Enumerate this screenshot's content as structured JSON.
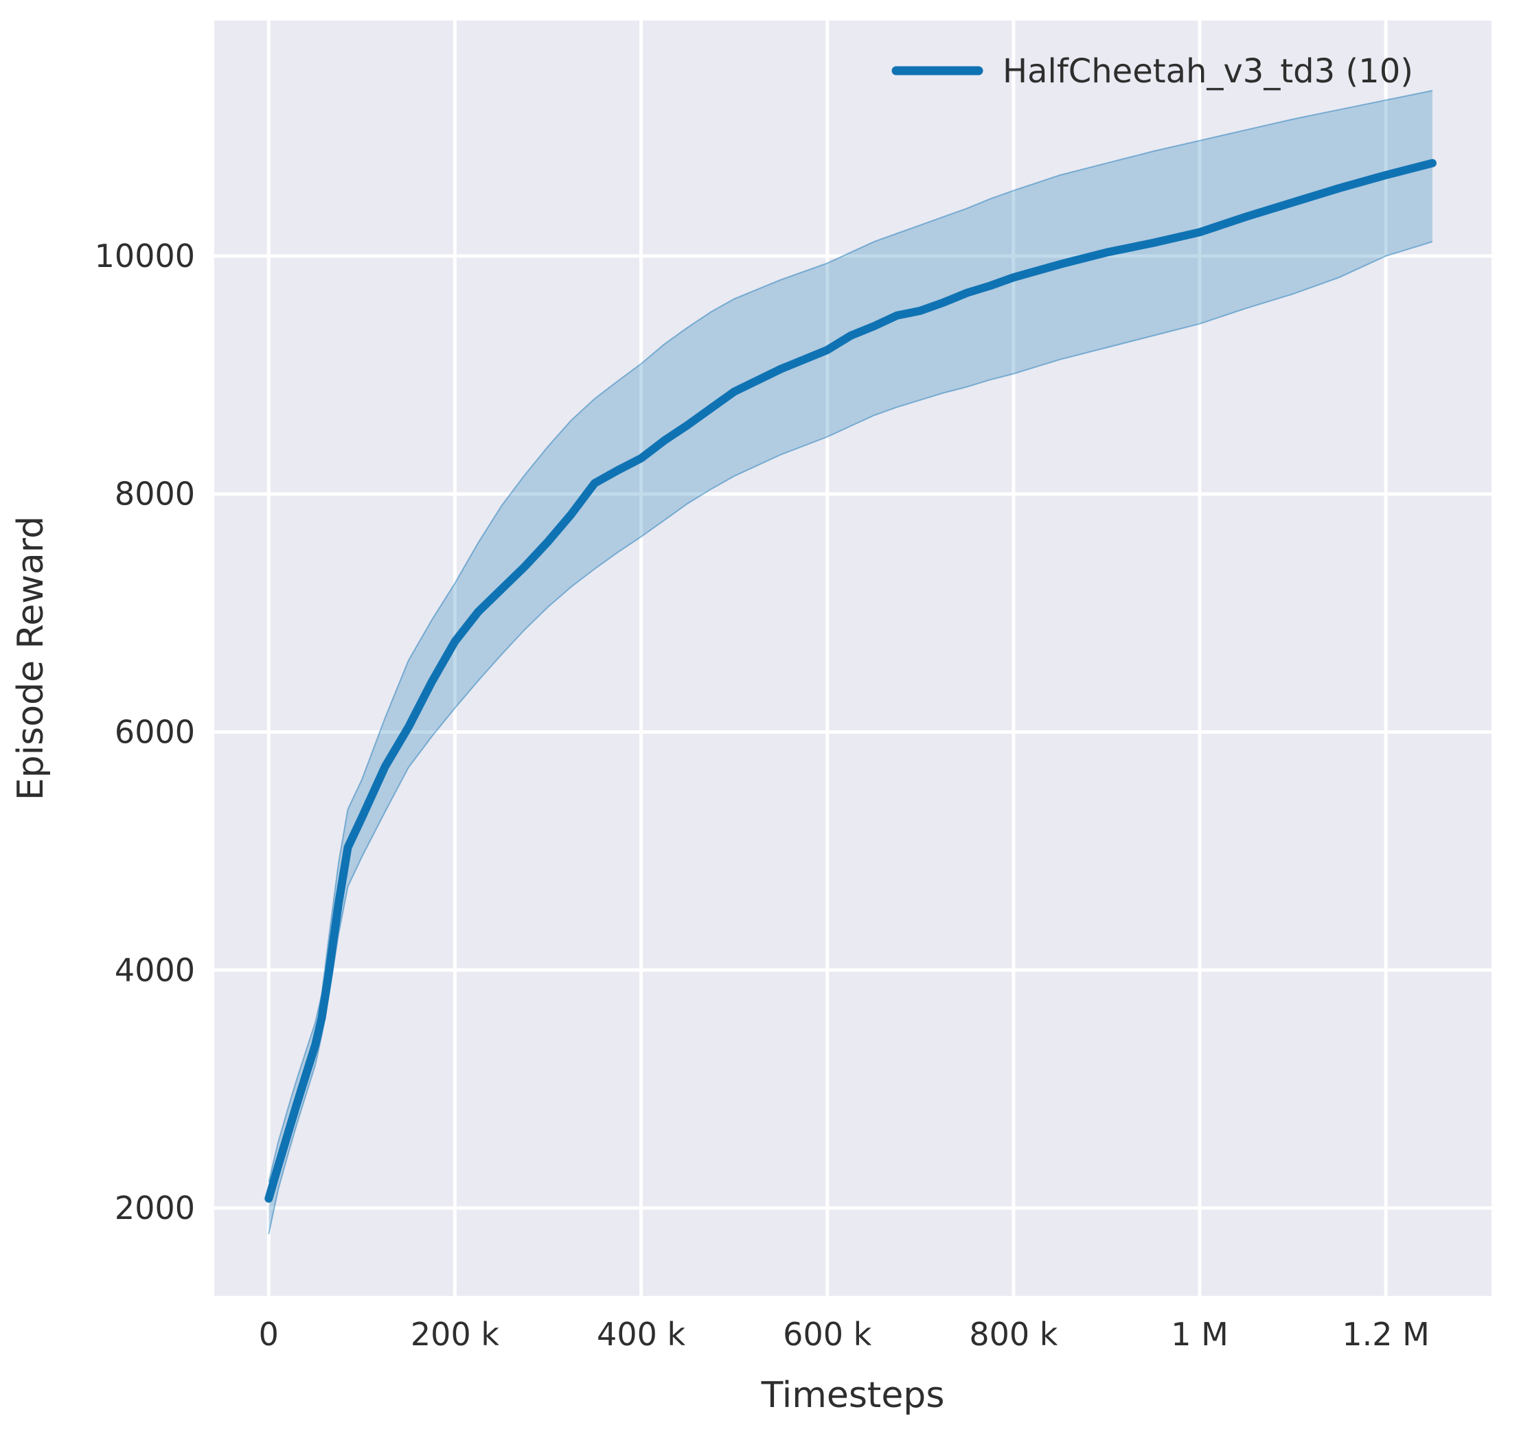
{
  "chart_data": {
    "type": "line",
    "title": "",
    "xlabel": "Timesteps",
    "ylabel": "Episode Reward",
    "legend": {
      "position": "upper right",
      "frame": false,
      "label": "HalfCheetah_v3_td3 (10)"
    },
    "grid": true,
    "style": "seaborn-darkgrid",
    "colors": {
      "line": "#0f73b3",
      "band_fill": "rgba(15,115,179,0.26)",
      "band_edge": "rgba(15,115,179,0.45)",
      "plot_background": "#eaeaf2",
      "gridline": "#ffffff",
      "text": "#2e2e2e",
      "figure_background": "#ffffff"
    },
    "x_ticks": {
      "values": [
        0,
        200000,
        400000,
        600000,
        800000,
        1000000,
        1200000
      ],
      "labels": [
        "0",
        "200 k",
        "400 k",
        "600 k",
        "800 k",
        "1 M",
        "1.2 M"
      ]
    },
    "y_ticks": {
      "values": [
        2000,
        4000,
        6000,
        8000,
        10000
      ],
      "labels": [
        "2000",
        "4000",
        "6000",
        "8000",
        "10000"
      ]
    },
    "xlim": [
      -58500,
      1313500
    ],
    "ylim": [
      1262,
      11978
    ],
    "series": [
      {
        "name": "HalfCheetah_v3_td3 (10)",
        "x": [
          0,
          10000,
          20000,
          30000,
          40000,
          50000,
          57000,
          65000,
          75000,
          85000,
          100000,
          125000,
          150000,
          175000,
          200000,
          225000,
          250000,
          275000,
          300000,
          325000,
          350000,
          375000,
          400000,
          425000,
          450000,
          475000,
          500000,
          550000,
          600000,
          625000,
          650000,
          675000,
          700000,
          725000,
          750000,
          775000,
          800000,
          850000,
          900000,
          950000,
          1000000,
          1050000,
          1100000,
          1150000,
          1200000,
          1250000
        ],
        "mean": [
          2080,
          2350,
          2610,
          2870,
          3120,
          3370,
          3600,
          4000,
          4560,
          5030,
          5280,
          5710,
          6040,
          6420,
          6760,
          7010,
          7200,
          7390,
          7600,
          7830,
          8090,
          8200,
          8300,
          8450,
          8580,
          8720,
          8860,
          9050,
          9210,
          9330,
          9410,
          9500,
          9540,
          9610,
          9690,
          9750,
          9820,
          9930,
          10030,
          10110,
          10200,
          10330,
          10450,
          10570,
          10680,
          10780
        ],
        "band_low": [
          1780,
          2150,
          2430,
          2700,
          2950,
          3200,
          3450,
          3800,
          4300,
          4700,
          4950,
          5330,
          5700,
          5960,
          6200,
          6430,
          6650,
          6860,
          7050,
          7220,
          7370,
          7510,
          7640,
          7780,
          7920,
          8040,
          8150,
          8330,
          8480,
          8570,
          8660,
          8730,
          8790,
          8850,
          8900,
          8960,
          9010,
          9130,
          9230,
          9330,
          9430,
          9560,
          9680,
          9820,
          10000,
          10120
        ],
        "band_high": [
          2220,
          2550,
          2820,
          3080,
          3320,
          3560,
          3800,
          4300,
          4900,
          5350,
          5600,
          6120,
          6600,
          6940,
          7250,
          7590,
          7900,
          8160,
          8400,
          8620,
          8800,
          8950,
          9095,
          9260,
          9400,
          9530,
          9640,
          9800,
          9940,
          10030,
          10120,
          10190,
          10260,
          10330,
          10400,
          10480,
          10550,
          10680,
          10780,
          10880,
          10970,
          11060,
          11150,
          11230,
          11310,
          11390
        ]
      }
    ]
  }
}
